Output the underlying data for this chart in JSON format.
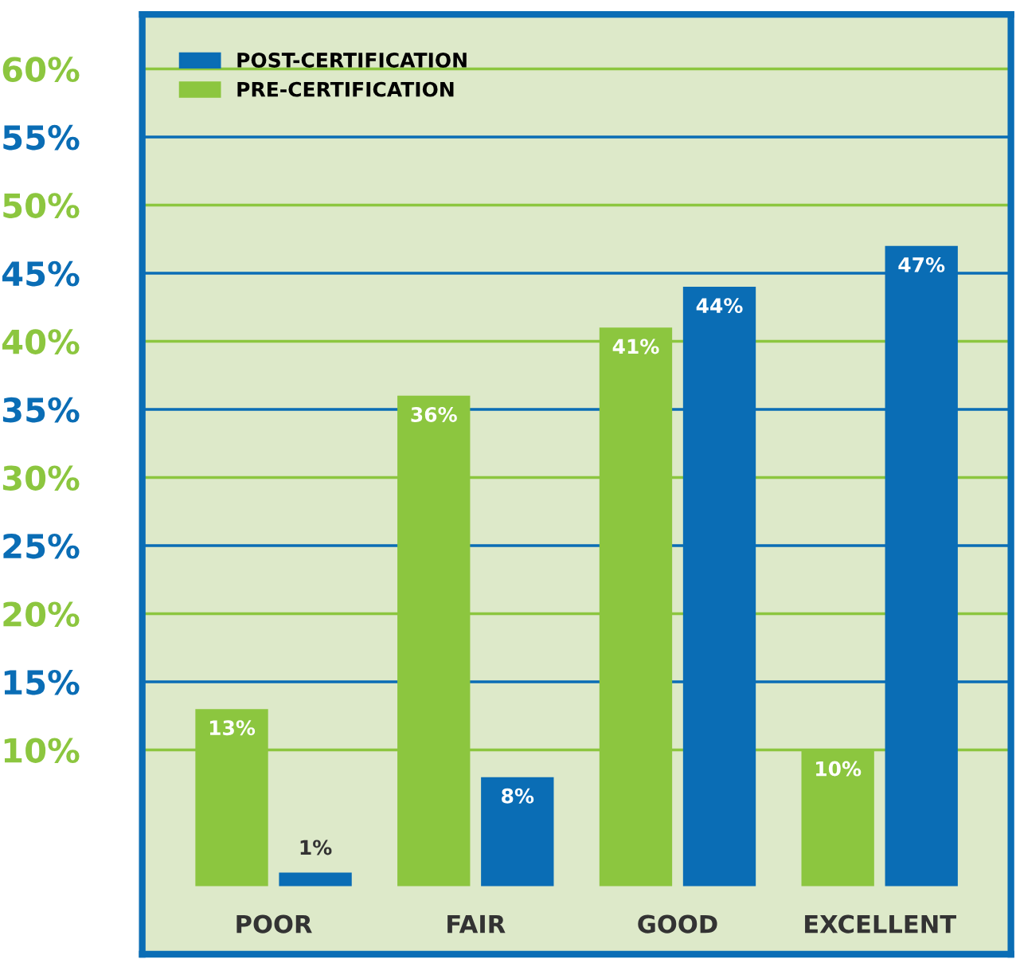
{
  "chart_data": {
    "type": "bar",
    "categories": [
      "POOR",
      "FAIR",
      "GOOD",
      "EXCELLENT"
    ],
    "series": [
      {
        "name": "PRE-CERTIFICATION",
        "color": "#8cc63f",
        "values": [
          13,
          36,
          41,
          10
        ],
        "value_labels": [
          "13%",
          "36%",
          "41%",
          "10%"
        ]
      },
      {
        "name": "POST-CERTIFICATION",
        "color": "#0a6db5",
        "values": [
          1,
          8,
          44,
          47
        ],
        "value_labels": [
          "1%",
          "8%",
          "44%",
          "47%"
        ]
      }
    ],
    "ylim": [
      -5,
      64
    ],
    "yticks": [
      {
        "value": 10,
        "label": "10%"
      },
      {
        "value": 15,
        "label": "15%"
      },
      {
        "value": 20,
        "label": "20%"
      },
      {
        "value": 25,
        "label": "25%"
      },
      {
        "value": 30,
        "label": "30%"
      },
      {
        "value": 35,
        "label": "35%"
      },
      {
        "value": 40,
        "label": "40%"
      },
      {
        "value": 45,
        "label": "45%"
      },
      {
        "value": 50,
        "label": "50%"
      },
      {
        "value": 55,
        "label": "55%"
      },
      {
        "value": 60,
        "label": "60%"
      }
    ],
    "grid": "y",
    "legend": "top left"
  }
}
